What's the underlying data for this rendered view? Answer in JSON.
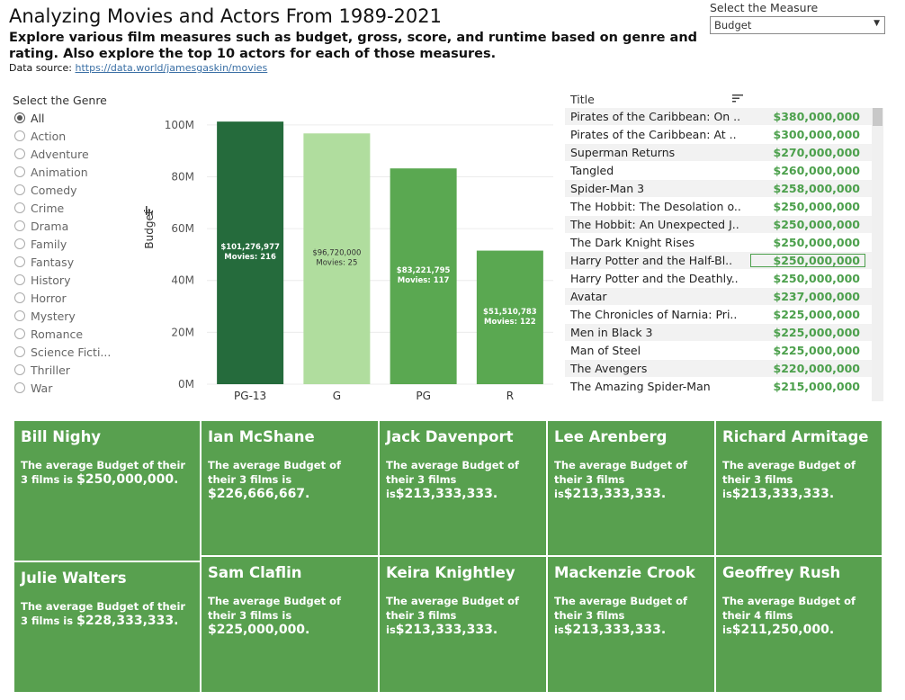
{
  "header": {
    "title": "Analyzing Movies and Actors From 1989-2021",
    "subtitle": "Explore various film measures such as budget, gross, score, and runtime based on genre and rating. Also explore the top 10 actors for each of those measures.",
    "source_prefix": "Data source: ",
    "source_link": "https://data.world/jamesgaskin/movies"
  },
  "measure": {
    "label": "Select the Measure",
    "selected": "Budget"
  },
  "genre": {
    "label": "Select the Genre",
    "selected": "All",
    "items": [
      "All",
      "Action",
      "Adventure",
      "Animation",
      "Comedy",
      "Crime",
      "Drama",
      "Family",
      "Fantasy",
      "History",
      "Horror",
      "Mystery",
      "Romance",
      "Science Ficti...",
      "Thriller",
      "War"
    ]
  },
  "chart_data": {
    "type": "bar",
    "ylabel": "Budget",
    "ylim": [
      0,
      110000000
    ],
    "yticks": [
      0,
      20000000,
      40000000,
      60000000,
      80000000,
      100000000
    ],
    "ytick_labels": [
      "0M",
      "20M",
      "40M",
      "60M",
      "80M",
      "100M"
    ],
    "categories": [
      "PG-13",
      "G",
      "PG",
      "R"
    ],
    "values": [
      101276977,
      96720000,
      83221795,
      51510783
    ],
    "value_labels": [
      "$101,276,977",
      "$96,720,000",
      "$83,221,795",
      "$51,510,783"
    ],
    "movie_labels": [
      "Movies: 216",
      "Movies: 25",
      "Movies: 117",
      "Movies: 122"
    ],
    "colors": [
      "#256b3c",
      "#b0dd9e",
      "#5aa851",
      "#5aa851"
    ]
  },
  "table": {
    "header": "Title",
    "rows": [
      {
        "title": "Pirates of the Caribbean: On ..",
        "value": "$380,000,000"
      },
      {
        "title": "Pirates of the Caribbean: At ..",
        "value": "$300,000,000"
      },
      {
        "title": "Superman Returns",
        "value": "$270,000,000"
      },
      {
        "title": "Tangled",
        "value": "$260,000,000"
      },
      {
        "title": "Spider-Man 3",
        "value": "$258,000,000"
      },
      {
        "title": "The Hobbit: The Desolation o..",
        "value": "$250,000,000"
      },
      {
        "title": "The Hobbit: An Unexpected J..",
        "value": "$250,000,000"
      },
      {
        "title": "The Dark Knight Rises",
        "value": "$250,000,000"
      },
      {
        "title": "Harry Potter and the Half-Bl..",
        "value": "$250,000,000"
      },
      {
        "title": "Harry Potter and the Deathly..",
        "value": "$250,000,000"
      },
      {
        "title": "Avatar",
        "value": "$237,000,000"
      },
      {
        "title": "The Chronicles of Narnia: Pri..",
        "value": "$225,000,000"
      },
      {
        "title": "Men in Black 3",
        "value": "$225,000,000"
      },
      {
        "title": "Man of Steel",
        "value": "$225,000,000"
      },
      {
        "title": "The Avengers",
        "value": "$220,000,000"
      },
      {
        "title": "The Amazing Spider-Man",
        "value": "$215,000,000"
      }
    ]
  },
  "actors": [
    {
      "name": "Bill Nighy",
      "desc": "The average Budget of their 3 films is ",
      "value": "$250,000,000."
    },
    {
      "name": "Julie Walters",
      "desc": "The average Budget of their 3 films is ",
      "value": "$228,333,333."
    },
    {
      "name": "Ian McShane",
      "desc": "The average Budget of their 3 films is ",
      "value": "$226,666,667."
    },
    {
      "name": "Sam Claflin",
      "desc": "The average Budget of their 3 films is ",
      "value": "$225,000,000."
    },
    {
      "name": "Jack Davenport",
      "desc": "The average Budget of their 3 films is",
      "value": "$213,333,333."
    },
    {
      "name": "Keira Knightley",
      "desc": "The average Budget of their 3 films is",
      "value": "$213,333,333."
    },
    {
      "name": "Lee Arenberg",
      "desc": "The average Budget of their 3 films is",
      "value": "$213,333,333."
    },
    {
      "name": "Mackenzie Crook",
      "desc": "The average Budget of their 3 films is",
      "value": "$213,333,333."
    },
    {
      "name": "Richard Armitage",
      "desc": "The average Budget of their 3 films is",
      "value": "$213,333,333."
    },
    {
      "name": "Geoffrey Rush",
      "desc": "The average Budget of their 4 films is",
      "value": "$211,250,000."
    }
  ]
}
